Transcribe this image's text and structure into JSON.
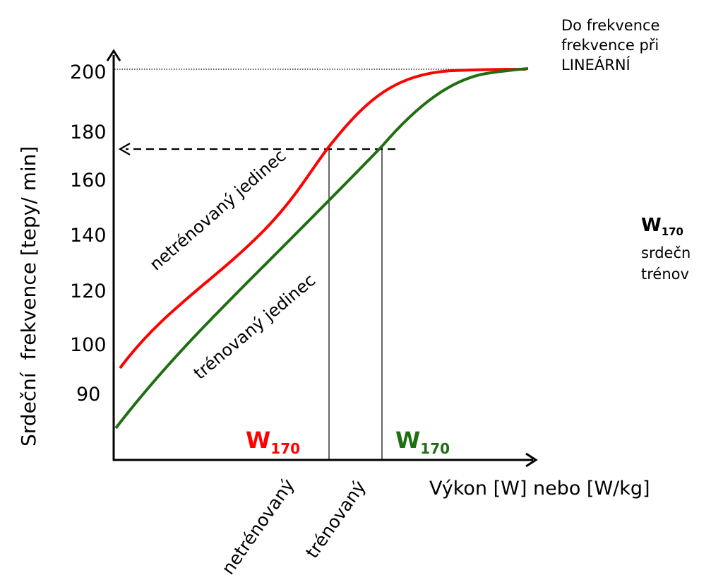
{
  "diagram": {
    "y_axis_label": "Srdeční  frekvence [tepy/ min]",
    "y_ticks": [
      "200",
      "180",
      "160",
      "140",
      "120",
      "100",
      "90"
    ],
    "x_axis_label": "Výkon [W] nebo [W/kg]",
    "curve_untrained_label": "netrénovaný jedinec",
    "curve_trained_label": "trénovaný jedinec",
    "w_untrained": {
      "main": "W",
      "sub": "170"
    },
    "w_trained": {
      "main": "W",
      "sub": "170"
    },
    "x_label_untrained": "netrénovaný",
    "x_label_trained": "trénovaný",
    "colors": {
      "untrained": "#ff0000",
      "trained": "#1f6e12",
      "axis": "#000000"
    }
  },
  "note_top": {
    "line1": "Do frekvence",
    "line2": "frekvence při",
    "line3": "LINEÁRNÍ"
  },
  "note_w170": {
    "main": "W",
    "sub": "170",
    "line2": "srdečn",
    "line3": "trénov"
  }
}
